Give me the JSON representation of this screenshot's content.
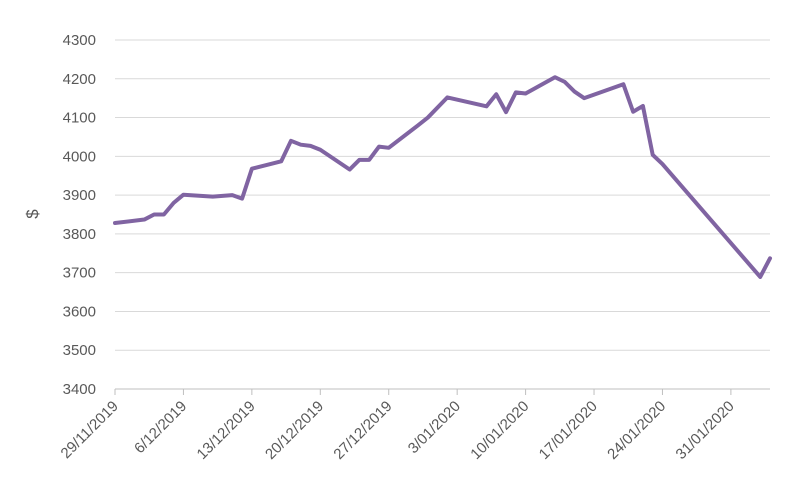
{
  "chart_data": {
    "type": "line",
    "title": "",
    "xlabel": "",
    "ylabel": "$",
    "ylim": [
      3400,
      4300
    ],
    "yticks": [
      3400,
      3500,
      3600,
      3700,
      3800,
      3900,
      4000,
      4100,
      4200,
      4300
    ],
    "xlim": [
      "2019-11-29",
      "2020-02-04"
    ],
    "xtick_labels": [
      "29/11/2019",
      "6/12/2019",
      "13/12/2019",
      "20/12/2019",
      "27/12/2019",
      "3/01/2020",
      "10/01/2020",
      "17/01/2020",
      "24/01/2020",
      "31/01/2020"
    ],
    "grid": true,
    "legend": false,
    "line_color": "#8064A2",
    "series": [
      {
        "x": [
          "2019-11-29",
          "2019-12-02",
          "2019-12-03",
          "2019-12-04",
          "2019-12-05",
          "2019-12-06",
          "2019-12-09",
          "2019-12-11",
          "2019-12-12",
          "2019-12-13",
          "2019-12-16",
          "2019-12-17",
          "2019-12-18",
          "2019-12-19",
          "2019-12-20",
          "2019-12-23",
          "2019-12-24",
          "2019-12-25",
          "2019-12-26",
          "2019-12-27",
          "2019-12-30",
          "2019-12-31",
          "2020-01-02",
          "2020-01-06",
          "2020-01-07",
          "2020-01-08",
          "2020-01-09",
          "2020-01-10",
          "2020-01-13",
          "2020-01-14",
          "2020-01-15",
          "2020-01-16",
          "2020-01-20",
          "2020-01-21",
          "2020-01-22",
          "2020-01-23",
          "2020-01-24",
          "2020-02-03",
          "2020-02-04"
        ],
        "values": [
          3828,
          3837,
          3850,
          3850,
          3880,
          3901,
          3896,
          3900,
          3891,
          3968,
          3987,
          4040,
          4030,
          4027,
          4017,
          3966,
          3991,
          3991,
          4025,
          4022,
          4080,
          4100,
          4152,
          4129,
          4160,
          4114,
          4165,
          4162,
          4204,
          4192,
          4167,
          4150,
          4186,
          4115,
          4130,
          4004,
          3980,
          3689,
          3737
        ]
      }
    ]
  }
}
